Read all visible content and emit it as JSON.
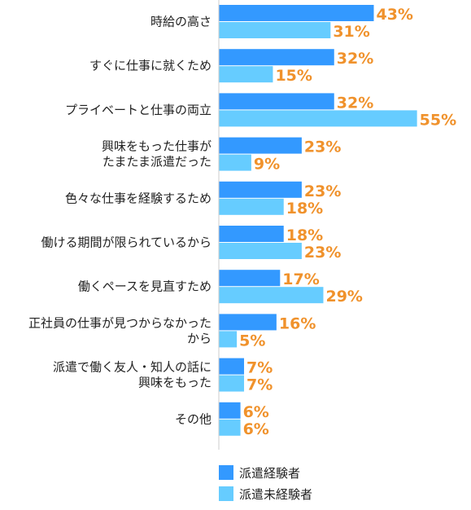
{
  "chart_data": {
    "type": "bar",
    "orientation": "horizontal",
    "title": "",
    "xlabel": "",
    "ylabel": "",
    "xlim": [
      0,
      56
    ],
    "grid": false,
    "legend_position": "bottom",
    "value_suffix": "%",
    "categories": [
      [
        "時給の高さ"
      ],
      [
        "すぐに仕事に就くため"
      ],
      [
        "プライベートと仕事の両立"
      ],
      [
        "興味をもった仕事が",
        "たまたま派遣だった"
      ],
      [
        "色々な仕事を経験するため"
      ],
      [
        "働ける期間が限られているから"
      ],
      [
        "働くペースを見直すため"
      ],
      [
        "正社員の仕事が見つからなかった",
        "から"
      ],
      [
        "派遣で働く友人・知人の話に",
        "興味をもった"
      ],
      [
        "その他"
      ]
    ],
    "series": [
      {
        "name": "派遣経験者",
        "color": "#3399ff",
        "values": [
          43,
          32,
          32,
          23,
          23,
          18,
          17,
          16,
          7,
          6
        ]
      },
      {
        "name": "派遣未経験者",
        "color": "#66ccff",
        "values": [
          31,
          15,
          55,
          9,
          18,
          23,
          29,
          5,
          7,
          6
        ]
      }
    ],
    "value_label_color": "#f0922c",
    "axis_color": "#cccccc"
  }
}
